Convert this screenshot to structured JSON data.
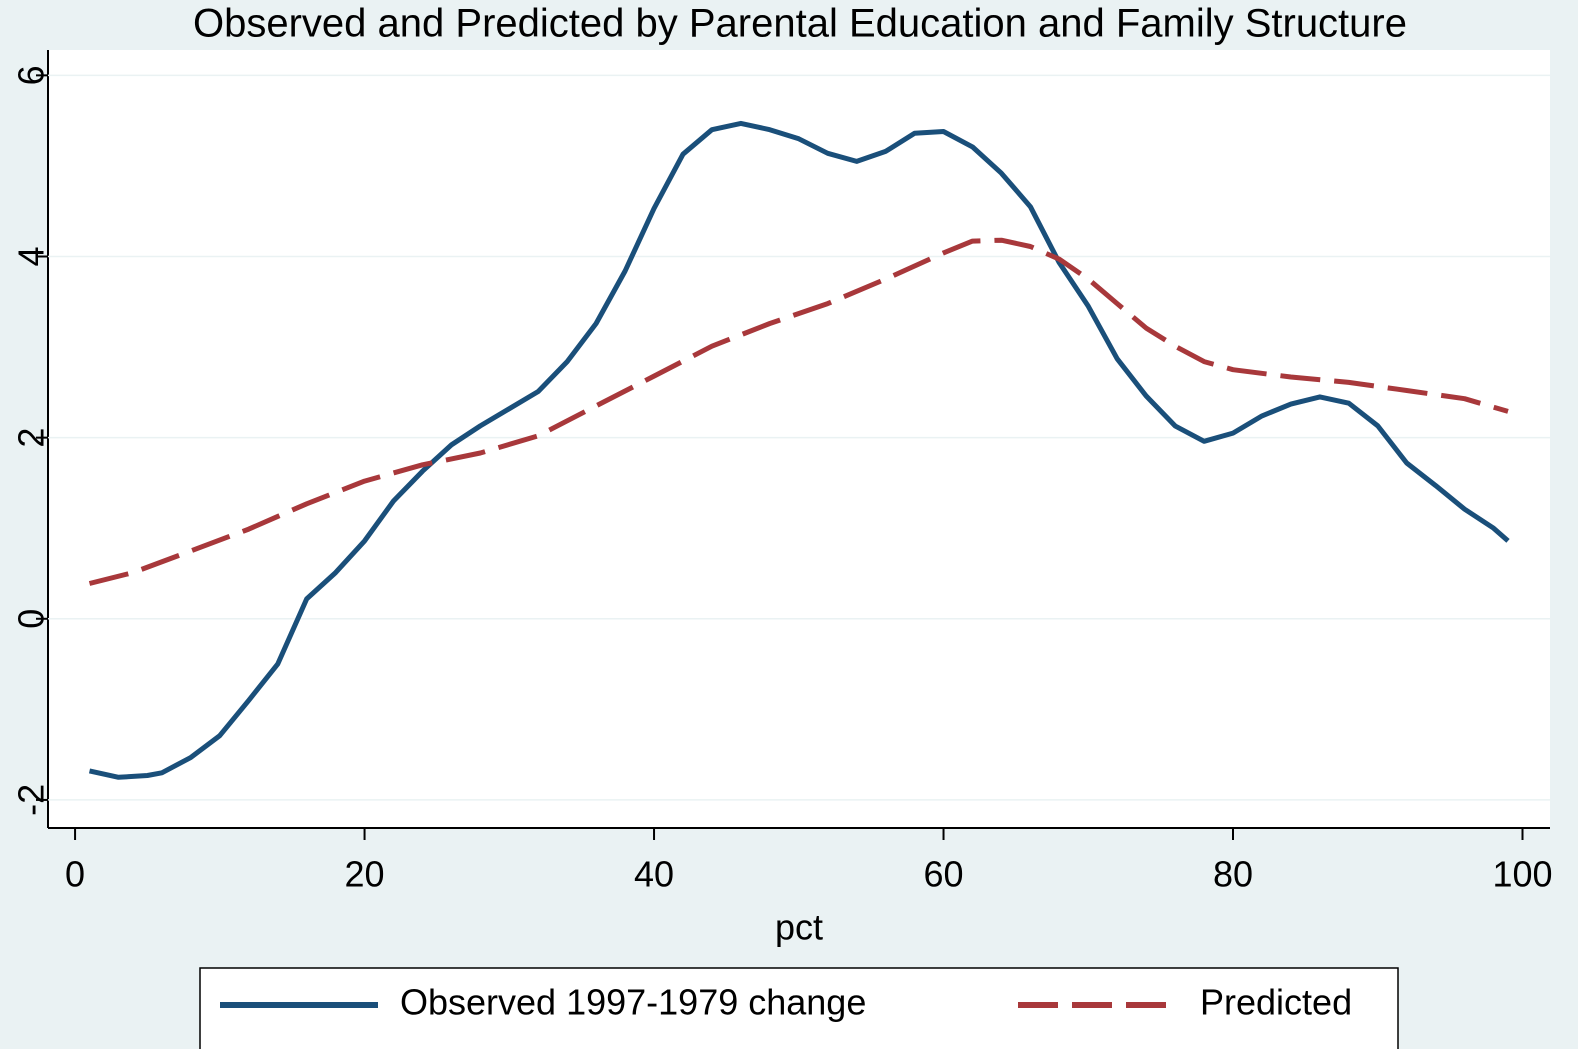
{
  "chart_data": {
    "type": "line",
    "title": "Observed and Predicted by Parental Education and Family Structure",
    "x_label": "pct",
    "xlim": [
      -1.87,
      101.9
    ],
    "xticks": [
      0,
      20,
      40,
      60,
      80,
      100
    ],
    "ylim": [
      -2.31,
      6.28
    ],
    "yticks": [
      -2,
      0,
      2,
      4,
      6
    ],
    "grid": true,
    "legend": "bottom",
    "series": [
      {
        "name": "Observed 1997-1979 change",
        "color": "#1a4f7a",
        "style": "solid",
        "x": [
          1,
          3,
          5,
          6,
          8,
          10,
          12,
          14,
          16,
          18,
          20,
          22,
          24,
          26,
          28,
          30,
          32,
          34,
          36,
          38,
          40,
          42,
          44,
          46,
          48,
          50,
          52,
          54,
          56,
          58,
          60,
          62,
          64,
          66,
          68,
          70,
          72,
          74,
          76,
          78,
          80,
          82,
          84,
          86,
          88,
          90,
          92,
          94,
          96,
          98,
          99
        ],
        "values": [
          -1.68,
          -1.75,
          -1.73,
          -1.7,
          -1.53,
          -1.29,
          -0.9,
          -0.5,
          0.22,
          0.51,
          0.86,
          1.3,
          1.63,
          1.92,
          2.13,
          2.32,
          2.51,
          2.84,
          3.26,
          3.84,
          4.53,
          5.13,
          5.4,
          5.47,
          5.4,
          5.3,
          5.14,
          5.05,
          5.16,
          5.36,
          5.38,
          5.21,
          4.92,
          4.55,
          3.93,
          3.45,
          2.87,
          2.46,
          2.13,
          1.96,
          2.05,
          2.24,
          2.37,
          2.45,
          2.38,
          2.13,
          1.72,
          1.47,
          1.21,
          1.0,
          0.86
        ]
      },
      {
        "name": "Predicted",
        "color": "#a8383b",
        "style": "dashed",
        "x": [
          1,
          4,
          8,
          12,
          16,
          20,
          24,
          28,
          32,
          36,
          40,
          44,
          48,
          52,
          56,
          60,
          62,
          64,
          66,
          68,
          70,
          72,
          74,
          76,
          78,
          80,
          84,
          88,
          92,
          96,
          99
        ],
        "values": [
          0.39,
          0.51,
          0.75,
          0.99,
          1.27,
          1.52,
          1.7,
          1.83,
          2.02,
          2.35,
          2.68,
          3.01,
          3.26,
          3.48,
          3.75,
          4.04,
          4.17,
          4.18,
          4.11,
          3.97,
          3.75,
          3.48,
          3.21,
          3.01,
          2.84,
          2.75,
          2.67,
          2.61,
          2.52,
          2.43,
          2.29
        ]
      }
    ]
  }
}
